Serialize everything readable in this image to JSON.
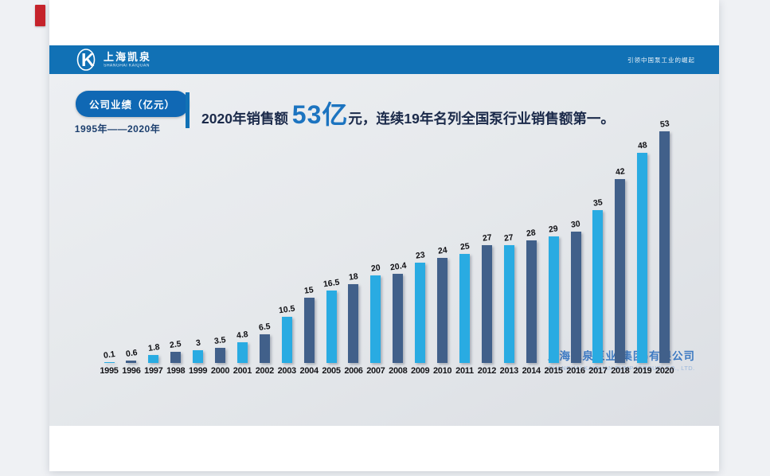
{
  "slide": {
    "header": {
      "brand_cn": "上海凯泉",
      "brand_en": "SHANGHAI KAIQUAN",
      "logo_mark": "K",
      "slogan": "引领中国泵工业的崛起"
    },
    "badge_label": "公司业绩（亿元）",
    "year_range": "1995年——2020年",
    "headline": {
      "prefix": "2020年销售额 ",
      "highlight": "53亿",
      "suffix": "元，连续19年名列全国泵行业销售额第一。"
    },
    "footer": {
      "company_cn": "上海凯泉泵业(集团)有限公司",
      "company_en": "SHANGHAI KAIQUAN PUMP (GROUP) CO., LTD."
    }
  },
  "chart_data": {
    "type": "bar",
    "title": "公司业绩（亿元）1995年——2020年",
    "categories": [
      "1995",
      "1996",
      "1997",
      "1998",
      "1999",
      "2000",
      "2001",
      "2002",
      "2003",
      "2004",
      "2005",
      "2006",
      "2007",
      "2008",
      "2009",
      "2010",
      "2011",
      "2012",
      "2013",
      "2014",
      "2015",
      "2016",
      "2017",
      "2018",
      "2019",
      "2020"
    ],
    "values": [
      0.1,
      0.6,
      1.8,
      2.5,
      3,
      3.5,
      4.8,
      6.5,
      10.5,
      15,
      16.5,
      18,
      20,
      20.4,
      23,
      24,
      25,
      27,
      27,
      28,
      29,
      30,
      35,
      42,
      48,
      53
    ],
    "value_labels": [
      "0.1",
      "0.6",
      "1.8",
      "2.5",
      "3",
      "3.5",
      "4.8",
      "6.5",
      "10.5",
      "15",
      "16.5",
      "18",
      "20",
      "20.4",
      "23",
      "24",
      "25",
      "27",
      "27",
      "28",
      "29",
      "30",
      "35",
      "42",
      "48",
      "53"
    ],
    "xlabel": "",
    "ylabel": "",
    "ylim": [
      0,
      55
    ],
    "grid": false,
    "legend": false,
    "value_label_rotation": -8,
    "bar_colors": {
      "odd_year": "#29abe2",
      "even_year": "#41608a"
    },
    "accent_color": "#1171b5",
    "highlight_color": "#1c74c0"
  }
}
